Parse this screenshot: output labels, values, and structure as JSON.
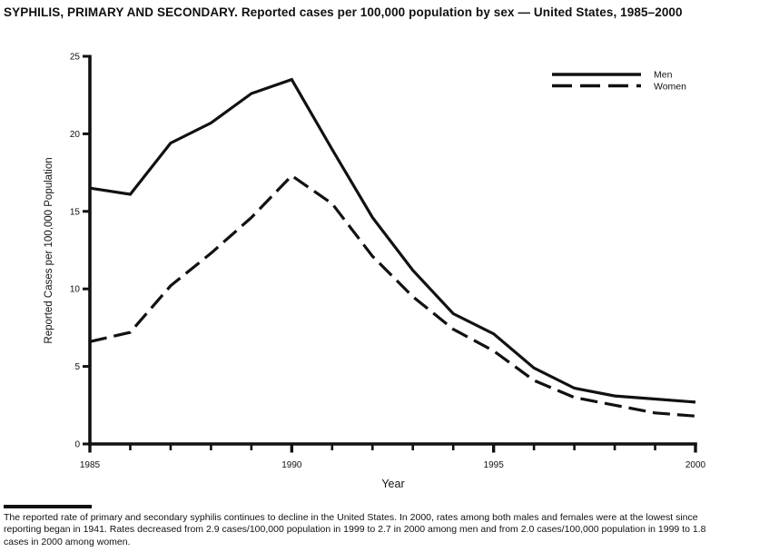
{
  "title": "SYPHILIS, PRIMARY AND SECONDARY. Reported cases per 100,000 population by sex — United States, 1985–2000",
  "chart_data": {
    "type": "line",
    "title": "SYPHILIS, PRIMARY AND SECONDARY. Reported cases per 100,000 population by sex — United States, 1985–2000",
    "xlabel": "Year",
    "ylabel": "Reported Cases per 100,000 Population",
    "xlim": [
      1985,
      2000
    ],
    "ylim": [
      0,
      25
    ],
    "y_ticks": [
      0,
      5,
      10,
      15,
      20,
      25
    ],
    "x_major_ticks": [
      1985,
      1990,
      1995,
      2000
    ],
    "grid": false,
    "legend_position": "top-right",
    "line_color": "#111111",
    "background": "#ffffff",
    "x": [
      1985,
      1986,
      1987,
      1988,
      1989,
      1990,
      1991,
      1992,
      1993,
      1994,
      1995,
      1996,
      1997,
      1998,
      1999,
      2000
    ],
    "series": [
      {
        "name": "Men",
        "style": "solid",
        "values": [
          16.5,
          16.1,
          19.4,
          20.7,
          22.6,
          23.5,
          19.0,
          14.6,
          11.2,
          8.4,
          7.1,
          4.9,
          3.6,
          3.1,
          2.9,
          2.7
        ]
      },
      {
        "name": "Women",
        "style": "dashed",
        "values": [
          6.6,
          7.2,
          10.2,
          12.3,
          14.6,
          17.3,
          15.5,
          12.1,
          9.5,
          7.4,
          6.0,
          4.1,
          3.0,
          2.5,
          2.0,
          1.8
        ]
      }
    ]
  },
  "footnote": {
    "full_text": "The reported rate of primary and secondary syphilis continues to decline in the United States. In 2000, rates among both males and females were at the lowest since reporting began in 1941. Rates decreased from 2.9 cases/100,000 population in 1999 to 2.7 in 2000 among men and from 2.0 cases/100,000 population in 1999 to 1.8 cases in 2000 among women.",
    "lines": [
      "The reported rate of primary and secondary syphilis continues to decline in the United States. In 2000, rates among both males and females were at the lowest since",
      "reporting began in 1941. Rates decreased from 2.9 cases/100,000 population in 1999 to 2.7 in 2000 among men and from 2.0 cases/100,000 population in 1999 to 1.8",
      "cases in 2000 among women."
    ]
  }
}
